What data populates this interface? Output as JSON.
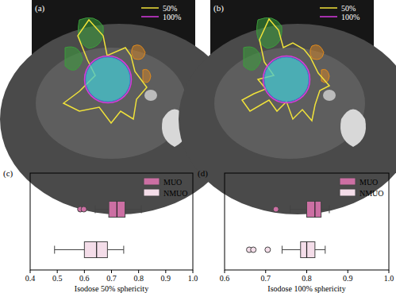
{
  "images": [
    {
      "label": "(a)",
      "legend": [
        "50%",
        "100%"
      ]
    },
    {
      "label": "(b)",
      "legend": [
        "50%",
        "100%"
      ]
    }
  ],
  "chart_data": [
    {
      "type": "box",
      "label": "(c)",
      "orientation": "horizontal",
      "x_label": "Isodose 50% sphericity",
      "xlim": [
        0.4,
        1
      ],
      "xticks": [
        0.4,
        0.5,
        0.6,
        0.7,
        0.8,
        0.9,
        {
          "value": 1,
          "label": "1.0"
        }
      ],
      "legend": "upper right",
      "series": [
        {
          "name": "MUO",
          "color": "#cc6fa3",
          "min": 0.64,
          "q1": 0.69,
          "median": 0.72,
          "q3": 0.75,
          "max": 0.81,
          "outliers": [
            0.585,
            0.598
          ]
        },
        {
          "name": "NMUO",
          "color": "#f4dde9",
          "min": 0.49,
          "q1": 0.6,
          "median": 0.645,
          "q3": 0.685,
          "max": 0.745,
          "outliers": []
        }
      ]
    },
    {
      "type": "box",
      "label": "(d)",
      "orientation": "horizontal",
      "x_label": "Isodose 100% sphericity",
      "xlim": [
        0.6,
        1
      ],
      "xticks": [
        0.6,
        0.7,
        0.8,
        0.9,
        {
          "value": 1,
          "label": "1.0"
        }
      ],
      "legend": "upper right",
      "series": [
        {
          "name": "MUO",
          "color": "#cc6fa3",
          "min": 0.76,
          "q1": 0.8,
          "median": 0.82,
          "q3": 0.835,
          "max": 0.855,
          "outliers": [
            0.725
          ]
        },
        {
          "name": "NMUO",
          "color": "#f4dde9",
          "min": 0.74,
          "q1": 0.785,
          "median": 0.8,
          "q3": 0.82,
          "max": 0.845,
          "outliers": [
            0.66,
            0.67,
            0.705
          ]
        }
      ]
    }
  ]
}
